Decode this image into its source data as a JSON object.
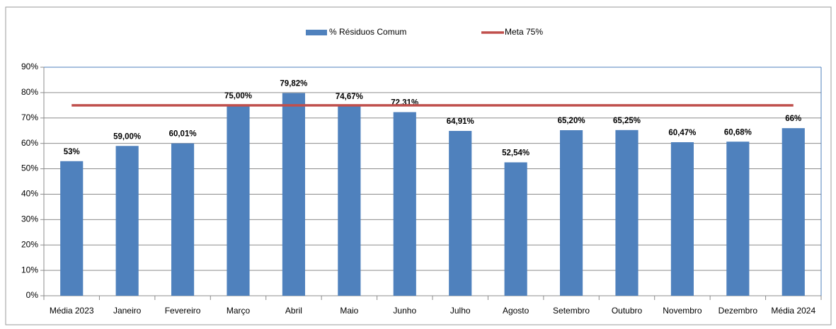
{
  "chart_data": {
    "type": "bar",
    "categories": [
      "Média 2023",
      "Janeiro",
      "Fevereiro",
      "Março",
      "Abril",
      "Maio",
      "Junho",
      "Julho",
      "Agosto",
      "Setembro",
      "Outubro",
      "Novembro",
      "Dezembro",
      "Média 2024"
    ],
    "series": [
      {
        "name": "% Résiduos Comum",
        "type": "bar",
        "color": "#4f81bd",
        "values": [
          53,
          59,
          60.01,
          75,
          79.82,
          74.67,
          72.31,
          64.91,
          52.54,
          65.2,
          65.25,
          60.47,
          60.68,
          66
        ],
        "value_labels": [
          "53%",
          "59,00%",
          "60,01%",
          "75,00%",
          "79,82%",
          "74,67%",
          "72,31%",
          "64,91%",
          "52,54%",
          "65,20%",
          "65,25%",
          "60,47%",
          "60,68%",
          "66%"
        ]
      },
      {
        "name": "Meta 75%",
        "type": "line",
        "color": "#c0504d",
        "values": [
          75,
          75,
          75,
          75,
          75,
          75,
          75,
          75,
          75,
          75,
          75,
          75,
          75,
          75
        ]
      }
    ],
    "ylim": [
      0,
      90
    ],
    "yticks": [
      {
        "value": 0,
        "label": "0%"
      },
      {
        "value": 10,
        "label": "10%"
      },
      {
        "value": 20,
        "label": "20%"
      },
      {
        "value": 30,
        "label": "30%"
      },
      {
        "value": 40,
        "label": "40%"
      },
      {
        "value": 50,
        "label": "50%"
      },
      {
        "value": 60,
        "label": "60%"
      },
      {
        "value": 70,
        "label": "70%"
      },
      {
        "value": 80,
        "label": "80%"
      },
      {
        "value": 90,
        "label": "90%"
      }
    ],
    "grid": true,
    "legend": "top"
  }
}
